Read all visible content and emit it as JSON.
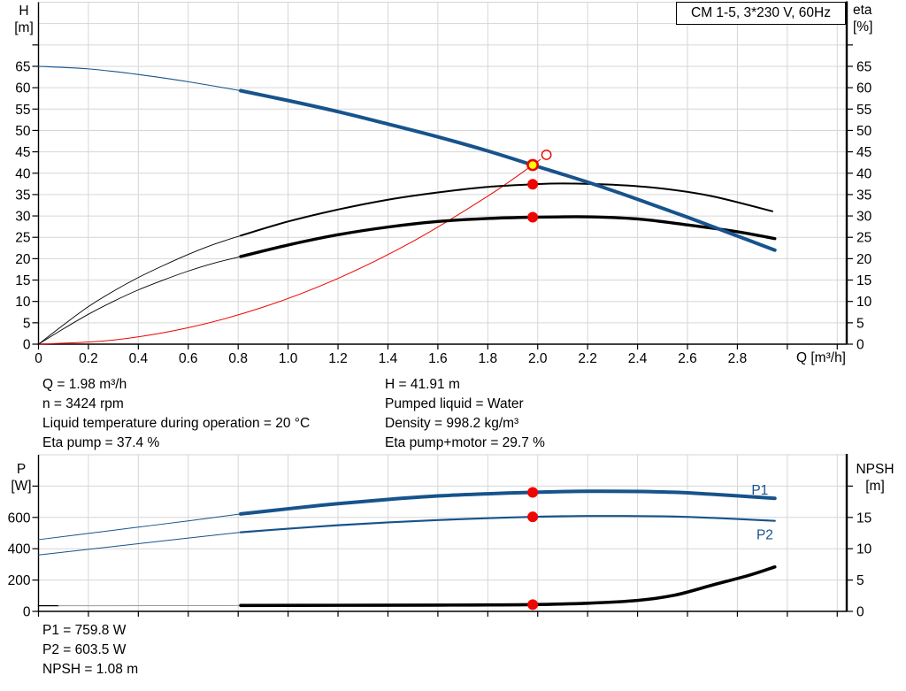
{
  "colors": {
    "blue": "#17538c",
    "red": "#ee0400",
    "yellow": "#ffff00",
    "black": "#000000",
    "gray": "#9a9a9a",
    "grid": "#d6d6d6"
  },
  "annotations": {
    "left": [
      "Q = 1.98 m³/h",
      "n = 3424 rpm",
      "Liquid temperature during operation = 20 °C",
      "Eta pump = 37.4 %"
    ],
    "right": [
      "H = 41.91 m",
      "Pumped liquid = Water",
      "Density = 998.2 kg/m³",
      "Eta pump+motor = 29.7 %"
    ],
    "bottom": [
      "P1 = 759.8 W",
      "P2 = 603.5 W",
      "NPSH = 1.08 m"
    ]
  },
  "chart_data": [
    {
      "type": "line",
      "title": "CM 1-5, 3*230 V, 60Hz",
      "x_axis": {
        "label": "Q [m³/h]",
        "min": 0,
        "max": 3.238,
        "grid_step": 0.2,
        "tick_max": 3.2,
        "label_max": 2.8
      },
      "y_left": {
        "name": "H",
        "unit": "[m]",
        "min": 0,
        "max": 80,
        "step": 5,
        "tick_max": 70,
        "label_max": 65
      },
      "y_right": {
        "name": "eta",
        "unit": "[%]",
        "min": 0,
        "max": 80,
        "step": 5,
        "tick_max": 70,
        "label_max": 65
      },
      "legend": "off",
      "grid": "on",
      "series": [
        {
          "name": "system-curve",
          "axis": "left",
          "color": "red",
          "width": 1,
          "points": [
            [
              0,
              0
            ],
            [
              0.3,
              0.96
            ],
            [
              0.6,
              3.85
            ],
            [
              0.9,
              8.66
            ],
            [
              1.2,
              15.39
            ],
            [
              1.5,
              24.05
            ],
            [
              1.8,
              34.63
            ],
            [
              1.98,
              41.91
            ],
            [
              2.01,
              43.2
            ]
          ]
        },
        {
          "name": "eta-pump-curve-extension",
          "axis": "right",
          "color": "black",
          "width": 0.9,
          "points": [
            [
              0,
              0
            ],
            [
              0.1,
              4.5
            ],
            [
              0.2,
              8.8
            ],
            [
              0.3,
              12.4
            ],
            [
              0.4,
              15.6
            ],
            [
              0.5,
              18.4
            ],
            [
              0.6,
              21.0
            ],
            [
              0.7,
              23.3
            ],
            [
              0.81,
              25.4
            ]
          ]
        },
        {
          "name": "eta-pump-curve",
          "axis": "right",
          "color": "black",
          "width": 2,
          "points": [
            [
              0.81,
              25.4
            ],
            [
              1.0,
              28.7
            ],
            [
              1.2,
              31.5
            ],
            [
              1.4,
              33.8
            ],
            [
              1.6,
              35.5
            ],
            [
              1.8,
              36.8
            ],
            [
              1.98,
              37.4
            ],
            [
              2.1,
              37.6
            ],
            [
              2.3,
              37.3
            ],
            [
              2.5,
              36.4
            ],
            [
              2.7,
              34.6
            ],
            [
              2.94,
              31.1
            ]
          ]
        },
        {
          "name": "eta-pump-motor-curve-extension",
          "axis": "right",
          "color": "black",
          "width": 0.9,
          "points": [
            [
              0,
              0
            ],
            [
              0.1,
              3.6
            ],
            [
              0.2,
              7.0
            ],
            [
              0.3,
              10.0
            ],
            [
              0.4,
              12.7
            ],
            [
              0.5,
              15.0
            ],
            [
              0.6,
              17.1
            ],
            [
              0.7,
              18.9
            ],
            [
              0.81,
              20.5
            ]
          ]
        },
        {
          "name": "eta-pump-motor-curve",
          "axis": "right",
          "color": "black",
          "width": 3.4,
          "points": [
            [
              0.81,
              20.5
            ],
            [
              1.0,
              23.2
            ],
            [
              1.2,
              25.6
            ],
            [
              1.4,
              27.4
            ],
            [
              1.6,
              28.7
            ],
            [
              1.8,
              29.4
            ],
            [
              1.98,
              29.7
            ],
            [
              2.2,
              29.8
            ],
            [
              2.4,
              29.3
            ],
            [
              2.6,
              27.9
            ],
            [
              2.8,
              26.3
            ],
            [
              2.95,
              24.7
            ]
          ]
        },
        {
          "name": "pump-curve-extension",
          "axis": "left",
          "color": "blue",
          "width": 1.1,
          "points": [
            [
              0,
              65
            ],
            [
              0.2,
              64.4
            ],
            [
              0.4,
              63.1
            ],
            [
              0.6,
              61.4
            ],
            [
              0.81,
              59.3
            ]
          ]
        },
        {
          "name": "pump-curve",
          "axis": "left",
          "color": "blue",
          "width": 4,
          "points": [
            [
              0.81,
              59.3
            ],
            [
              1.0,
              57.0
            ],
            [
              1.2,
              54.4
            ],
            [
              1.4,
              51.5
            ],
            [
              1.6,
              48.5
            ],
            [
              1.8,
              45.2
            ],
            [
              1.98,
              41.91
            ],
            [
              2.2,
              37.9
            ],
            [
              2.4,
              33.9
            ],
            [
              2.6,
              29.7
            ],
            [
              2.8,
              25.3
            ],
            [
              2.95,
              22.0
            ]
          ]
        }
      ],
      "markers": [
        {
          "name": "eta-pump-point",
          "q": 1.98,
          "v": 37.4,
          "axis": "right",
          "r": 5.5,
          "fill": "red",
          "stroke": "red",
          "sw": 1
        },
        {
          "name": "eta-pump-motor-point",
          "q": 1.98,
          "v": 29.7,
          "axis": "right",
          "r": 5.5,
          "fill": "red",
          "stroke": "red",
          "sw": 1
        },
        {
          "name": "duty-point",
          "q": 1.98,
          "v": 41.91,
          "axis": "left",
          "r": 5.6,
          "fill": "yellow",
          "stroke": "red",
          "sw": 2.6,
          "interactable": true
        },
        {
          "name": "alt-duty-point",
          "q": 2.035,
          "v": 44.3,
          "axis": "left",
          "r": 5.2,
          "fill": "none",
          "stroke": "red",
          "sw": 1.4
        }
      ]
    },
    {
      "type": "line",
      "x_axis": {
        "label": "",
        "min": 0,
        "max": 3.238,
        "grid_step": 0.2,
        "tick_max": 3.2,
        "label_max": -1
      },
      "y_left": {
        "name": "P",
        "unit": "[W]",
        "min": 0,
        "max": 1000,
        "step": 200,
        "tick_max": 800,
        "label_max": 600
      },
      "y_right": {
        "name": "NPSH",
        "unit": "[m]",
        "min": 0,
        "max": 25,
        "step": 5,
        "tick_max": 20,
        "label_max": 15
      },
      "legend": "inline",
      "grid": "on",
      "series": [
        {
          "name": "npsh-curve-start",
          "axis": "right",
          "color": "black",
          "width": 1.3,
          "points": [
            [
              0,
              0.9
            ],
            [
              0.08,
              0.9
            ]
          ]
        },
        {
          "name": "npsh-curve-extension",
          "axis": "right",
          "color": "gray",
          "width": 1,
          "points": [
            [
              0.08,
              0.9
            ],
            [
              0.45,
              0.91
            ],
            [
              0.81,
              0.93
            ]
          ]
        },
        {
          "name": "npsh-curve",
          "axis": "right",
          "color": "black",
          "width": 3.6,
          "points": [
            [
              0.81,
              0.95
            ],
            [
              1.2,
              0.97
            ],
            [
              1.6,
              1.0
            ],
            [
              1.8,
              1.03
            ],
            [
              1.98,
              1.08
            ],
            [
              2.2,
              1.3
            ],
            [
              2.4,
              1.75
            ],
            [
              2.55,
              2.6
            ],
            [
              2.7,
              4.2
            ],
            [
              2.85,
              5.8
            ],
            [
              2.95,
              7.1
            ]
          ]
        },
        {
          "name": "p1-curve-extension",
          "axis": "left",
          "color": "blue",
          "width": 1,
          "points": [
            [
              0,
              458
            ],
            [
              0.2,
              498
            ],
            [
              0.4,
              538
            ],
            [
              0.6,
              578
            ],
            [
              0.81,
              622
            ]
          ]
        },
        {
          "name": "p1-curve",
          "axis": "left",
          "color": "blue",
          "width": 4,
          "points": [
            [
              0.81,
              622
            ],
            [
              1.0,
              655
            ],
            [
              1.2,
              688
            ],
            [
              1.4,
              715
            ],
            [
              1.6,
              737
            ],
            [
              1.8,
              751
            ],
            [
              1.98,
              760
            ],
            [
              2.2,
              767
            ],
            [
              2.5,
              763
            ],
            [
              2.7,
              748
            ],
            [
              2.95,
              722
            ]
          ]
        },
        {
          "name": "p2-curve-extension",
          "axis": "left",
          "color": "blue",
          "width": 1,
          "points": [
            [
              0,
              360
            ],
            [
              0.2,
              396
            ],
            [
              0.4,
              432
            ],
            [
              0.6,
              468
            ],
            [
              0.81,
              505
            ]
          ]
        },
        {
          "name": "p2-curve",
          "axis": "left",
          "color": "blue",
          "width": 2.2,
          "points": [
            [
              0.81,
              505
            ],
            [
              1.0,
              528
            ],
            [
              1.2,
              550
            ],
            [
              1.4,
              568
            ],
            [
              1.6,
              583
            ],
            [
              1.8,
              595
            ],
            [
              1.98,
              603.5
            ],
            [
              2.2,
              609
            ],
            [
              2.5,
              607
            ],
            [
              2.7,
              597
            ],
            [
              2.95,
              578
            ]
          ]
        }
      ],
      "series_labels": [
        {
          "name": "p1-curve-label",
          "text": "P1",
          "q": 2.89,
          "v": 775,
          "axis": "left",
          "color": "blue"
        },
        {
          "name": "p2-curve-label",
          "text": "P2",
          "q": 2.91,
          "v": 490,
          "axis": "left",
          "color": "blue"
        }
      ],
      "markers": [
        {
          "name": "p1-point",
          "q": 1.98,
          "v": 760,
          "axis": "left",
          "r": 5.5,
          "fill": "red",
          "stroke": "red",
          "sw": 1
        },
        {
          "name": "p2-point",
          "q": 1.98,
          "v": 603.5,
          "axis": "left",
          "r": 5.5,
          "fill": "red",
          "stroke": "red",
          "sw": 1
        },
        {
          "name": "npsh-point",
          "q": 1.98,
          "v": 1.08,
          "axis": "right",
          "r": 5.5,
          "fill": "red",
          "stroke": "red",
          "sw": 1
        }
      ]
    }
  ]
}
